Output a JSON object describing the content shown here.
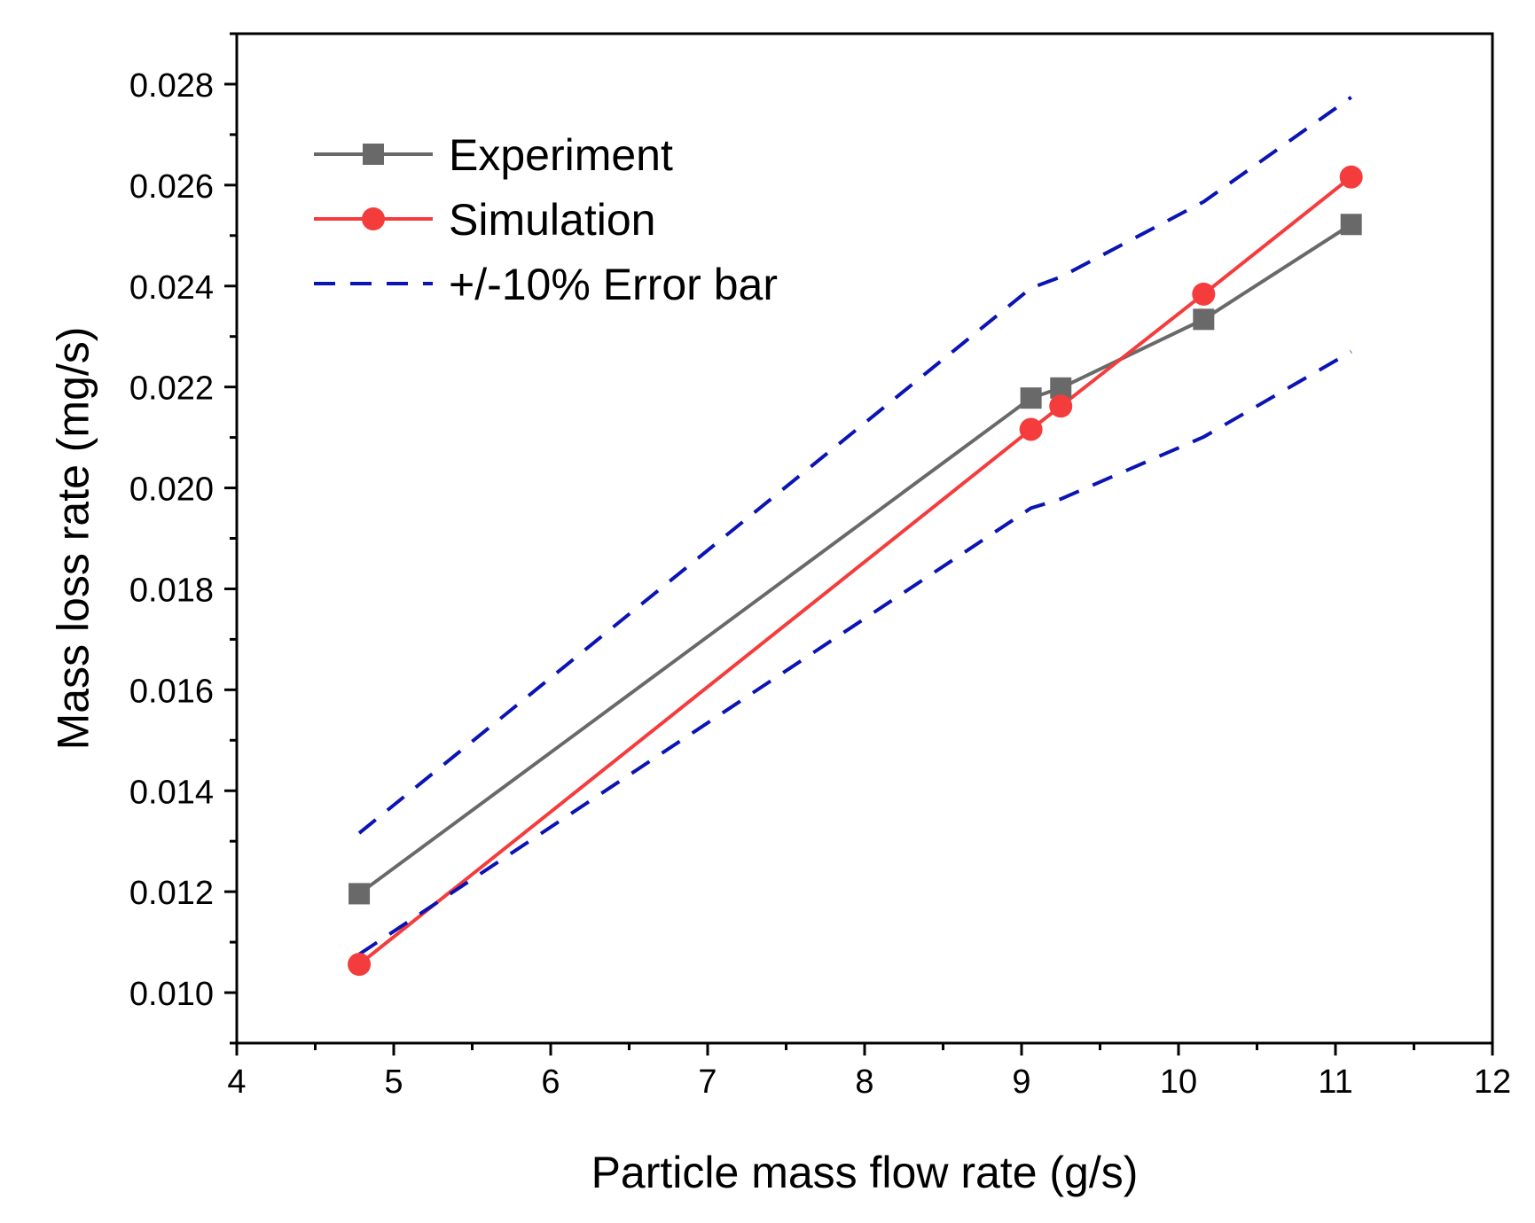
{
  "chart_data": {
    "type": "line",
    "xlabel": "Particle mass flow rate (g/s)",
    "ylabel": "Mass loss rate (mg/s)",
    "xlim": [
      4,
      12
    ],
    "ylim": [
      0.009,
      0.029
    ],
    "xticks": [
      4,
      5,
      6,
      7,
      8,
      9,
      10,
      11,
      12
    ],
    "xtick_labels": [
      "4",
      "5",
      "6",
      "7",
      "8",
      "9",
      "10",
      "11",
      "12"
    ],
    "yticks": [
      0.01,
      0.012,
      0.014,
      0.016,
      0.018,
      0.02,
      0.022,
      0.024,
      0.026,
      0.028
    ],
    "ytick_labels": [
      "0.010",
      "0.012",
      "0.014",
      "0.016",
      "0.018",
      "0.020",
      "0.022",
      "0.024",
      "0.026",
      "0.028"
    ],
    "legend_position": "top-left",
    "series": [
      {
        "name": "Experiment",
        "color": "#696969",
        "marker": "square",
        "dash": "solid",
        "x": [
          4.78,
          9.06,
          9.25,
          10.16,
          11.1
        ],
        "y": [
          0.01196,
          0.02178,
          0.02198,
          0.02334,
          0.02522
        ]
      },
      {
        "name": "Simulation",
        "color": "#f53c3c",
        "marker": "circle",
        "dash": "solid",
        "x": [
          4.78,
          9.06,
          9.25,
          10.16,
          11.1
        ],
        "y": [
          0.01056,
          0.02116,
          0.02162,
          0.02384,
          0.02616
        ]
      },
      {
        "name": "+/-10% Error bar",
        "color": "#0a14b4",
        "marker": "none",
        "dash": "dashed",
        "x": [
          4.78,
          9.06,
          9.25,
          10.16,
          11.1
        ],
        "y": [
          0.01316,
          0.02396,
          0.02418,
          0.02567,
          0.02774
        ]
      },
      {
        "name": "",
        "color": "#0a14b4",
        "marker": "none",
        "dash": "dashed",
        "x": [
          4.78,
          9.06,
          9.25,
          10.16,
          11.1
        ],
        "y": [
          0.01076,
          0.0196,
          0.01978,
          0.02101,
          0.0227
        ]
      }
    ]
  }
}
